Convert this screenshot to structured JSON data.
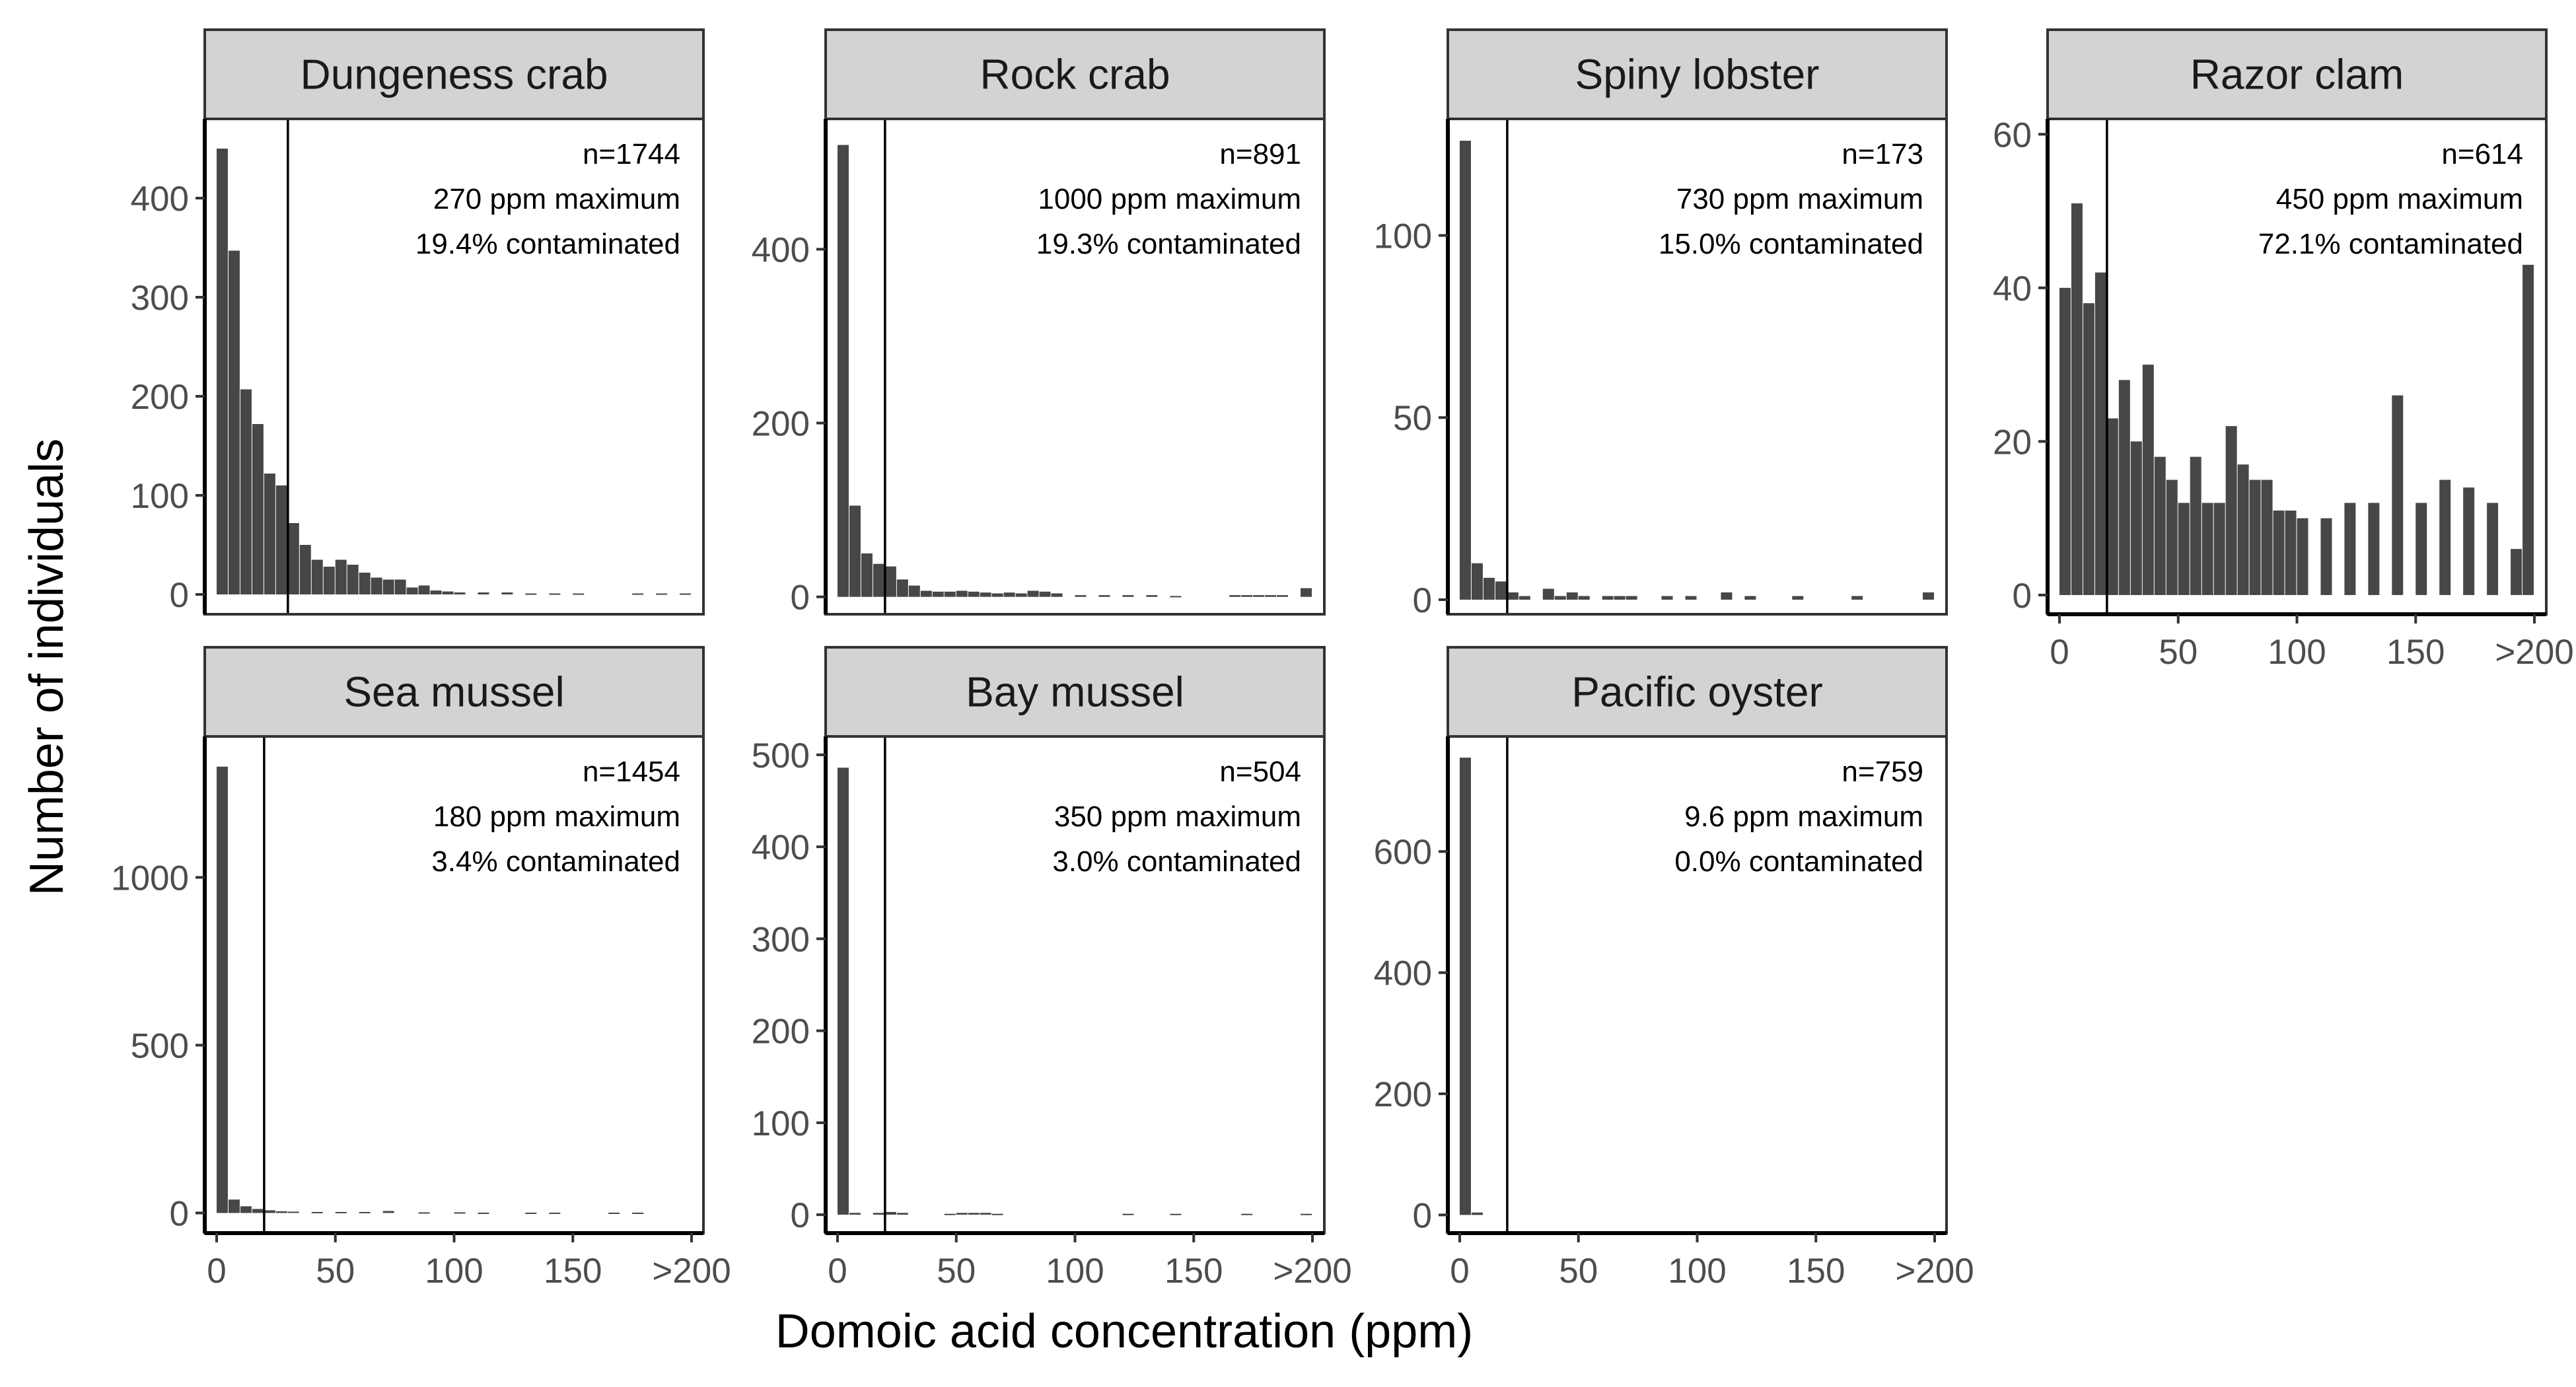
{
  "chart_data": {
    "type": "bar",
    "subtype": "faceted-histogram",
    "xlabel": "Domoic acid concentration (ppm)",
    "ylabel": "Number of individuals",
    "x_tick_labels": [
      "0",
      "50",
      "100",
      "150",
      ">200"
    ],
    "x_ticks": [
      0,
      50,
      100,
      150,
      200
    ],
    "xlim": [
      -5,
      205
    ],
    "bin_width": 5,
    "threshold_line_color": "#000000",
    "bar_color": "#474747",
    "strip_color": "#d3d3d3",
    "panels": [
      {
        "title": "Dungeness crab",
        "annotations": [
          "n=1744",
          "270 ppm maximum",
          "19.4% contaminated"
        ],
        "threshold": 30,
        "ylim": [
          -20,
          480
        ],
        "y_ticks": [
          0,
          100,
          200,
          300,
          400
        ],
        "bins": [
          2.5,
          7.5,
          12.5,
          17.5,
          22.5,
          27.5,
          32.5,
          37.5,
          42.5,
          47.5,
          52.5,
          57.5,
          62.5,
          67.5,
          72.5,
          77.5,
          82.5,
          87.5,
          92.5,
          97.5,
          102.5,
          112.5,
          122.5,
          132.5,
          142.5,
          152.5,
          177.5,
          187.5,
          197.5
        ],
        "counts": [
          450,
          347,
          207,
          172,
          122,
          110,
          72,
          50,
          35,
          28,
          35,
          30,
          22,
          17,
          15,
          15,
          7,
          9,
          4,
          3,
          2,
          2,
          2,
          1,
          1,
          1,
          1,
          1,
          1
        ]
      },
      {
        "title": "Rock crab",
        "annotations": [
          "n=891",
          "1000 ppm maximum",
          "19.3% contaminated"
        ],
        "threshold": 20,
        "ylim": [
          -20,
          550
        ],
        "y_ticks": [
          0,
          200,
          400
        ],
        "bins": [
          2.5,
          7.5,
          12.5,
          17.5,
          22.5,
          27.5,
          32.5,
          37.5,
          42.5,
          47.5,
          52.5,
          57.5,
          62.5,
          67.5,
          72.5,
          77.5,
          82.5,
          87.5,
          92.5,
          102.5,
          112.5,
          122.5,
          132.5,
          142.5,
          167.5,
          172.5,
          177.5,
          182.5,
          187.5,
          197.5
        ],
        "counts": [
          520,
          105,
          50,
          38,
          35,
          20,
          13,
          7,
          6,
          6,
          7,
          6,
          5,
          4,
          5,
          4,
          7,
          6,
          4,
          2,
          2,
          2,
          2,
          1,
          2,
          2,
          2,
          2,
          2,
          10
        ]
      },
      {
        "title": "Spiny lobster",
        "annotations": [
          "n=173",
          "730 ppm maximum",
          "15.0% contaminated"
        ],
        "threshold": 20,
        "ylim": [
          -4,
          132
        ],
        "y_ticks": [
          0,
          50,
          100
        ],
        "bins": [
          2.5,
          7.5,
          12.5,
          17.5,
          22.5,
          27.5,
          37.5,
          42.5,
          47.5,
          52.5,
          62.5,
          67.5,
          72.5,
          87.5,
          97.5,
          112.5,
          122.5,
          142.5,
          167.5,
          197.5
        ],
        "counts": [
          126,
          10,
          6,
          5,
          2,
          1,
          3,
          1,
          2,
          1,
          1,
          1,
          1,
          1,
          1,
          2,
          1,
          1,
          1,
          2
        ]
      },
      {
        "title": "Razor clam",
        "annotations": [
          "n=614",
          "450 ppm maximum",
          "72.1% contaminated"
        ],
        "threshold": 20,
        "ylim": [
          -2.5,
          62
        ],
        "y_ticks": [
          0,
          20,
          40,
          60
        ],
        "bins": [
          2.5,
          7.5,
          12.5,
          17.5,
          22.5,
          27.5,
          32.5,
          37.5,
          42.5,
          47.5,
          52.5,
          57.5,
          62.5,
          67.5,
          72.5,
          77.5,
          82.5,
          87.5,
          92.5,
          97.5,
          102.5,
          112.5,
          122.5,
          132.5,
          142.5,
          152.5,
          162.5,
          172.5,
          182.5,
          192.5,
          197.5
        ],
        "counts": [
          40,
          51,
          38,
          42,
          23,
          28,
          20,
          30,
          18,
          15,
          12,
          18,
          12,
          12,
          22,
          17,
          15,
          15,
          11,
          11,
          10,
          10,
          12,
          12,
          26,
          12,
          15,
          14,
          12,
          6,
          43
        ]
      },
      {
        "title": "Sea mussel",
        "annotations": [
          "n=1454",
          "180 ppm maximum",
          "3.4% contaminated"
        ],
        "threshold": 20,
        "ylim": [
          -60,
          1420
        ],
        "y_ticks": [
          0,
          500,
          1000
        ],
        "bins": [
          2.5,
          7.5,
          12.5,
          17.5,
          22.5,
          27.5,
          32.5,
          42.5,
          52.5,
          62.5,
          72.5,
          87.5,
          102.5,
          112.5,
          132.5,
          142.5,
          167.5,
          177.5
        ],
        "counts": [
          1330,
          40,
          20,
          12,
          8,
          5,
          4,
          3,
          3,
          3,
          6,
          2,
          2,
          1,
          1,
          1,
          1,
          1
        ]
      },
      {
        "title": "Bay mussel",
        "annotations": [
          "n=504",
          "350 ppm maximum",
          "3.0% contaminated"
        ],
        "threshold": 20,
        "ylim": [
          -20,
          520
        ],
        "y_ticks": [
          0,
          100,
          200,
          300,
          400,
          500
        ],
        "bins": [
          2.5,
          7.5,
          17.5,
          22.5,
          27.5,
          47.5,
          52.5,
          57.5,
          62.5,
          67.5,
          122.5,
          142.5,
          172.5,
          197.5
        ],
        "counts": [
          486,
          2,
          2,
          3,
          2,
          1,
          2,
          2,
          2,
          1,
          1,
          1,
          1,
          1
        ]
      },
      {
        "title": "Pacific oyster",
        "annotations": [
          "n=759",
          "9.6 ppm maximum",
          "0.0% contaminated"
        ],
        "threshold": 20,
        "ylim": [
          -30,
          790
        ],
        "y_ticks": [
          0,
          200,
          400,
          600
        ],
        "bins": [
          2.5,
          7.5
        ],
        "counts": [
          755,
          4
        ]
      }
    ]
  }
}
